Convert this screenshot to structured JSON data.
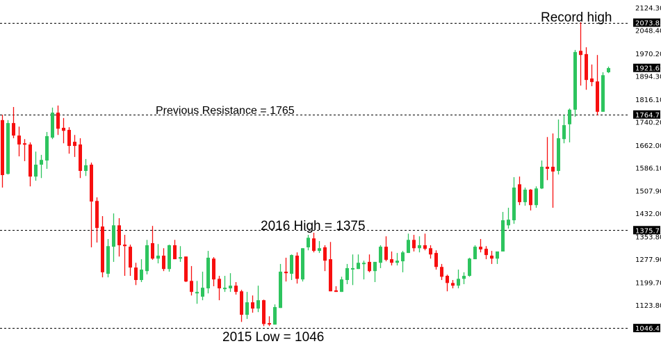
{
  "chart_data": {
    "type": "candlestick",
    "title": "",
    "xlabel": "",
    "ylabel": "",
    "ylim": [
      986,
      2150
    ],
    "grid": false,
    "colors": {
      "up": "#2dc45e",
      "down": "#f70f0f",
      "level_line": "#000000",
      "highlight_bg": "#000000"
    },
    "y_ticks": [
      "2124.30",
      "2048.40",
      "1970.20",
      "1894.30",
      "1816.10",
      "1740.20",
      "1662.00",
      "1586.10",
      "1507.90",
      "1432.00",
      "1353.80",
      "1277.90",
      "1199.70",
      "1123.80"
    ],
    "levels": [
      {
        "value": 2073.83,
        "label": "2073.83",
        "annotation": "Record high"
      },
      {
        "value": 1764.77,
        "label": "1764.77",
        "annotation": "Previous Resistance = 1765"
      },
      {
        "value": 1375.73,
        "label": "1375.73",
        "annotation": "2016 High = 1375"
      },
      {
        "value": 1046.41,
        "label": "1046.41",
        "annotation": "2015 Low = 1046"
      }
    ],
    "current_price": {
      "value": 1921.62,
      "label": "1921.62"
    },
    "candles_ohlc": [
      [
        1746,
        1764,
        1519,
        1561
      ],
      [
        1565,
        1746,
        1563,
        1736
      ],
      [
        1736,
        1790,
        1685,
        1694
      ],
      [
        1694,
        1724,
        1624,
        1664
      ],
      [
        1668,
        1682,
        1608,
        1664
      ],
      [
        1664,
        1671,
        1523,
        1556
      ],
      [
        1556,
        1640,
        1542,
        1596
      ],
      [
        1596,
        1629,
        1551,
        1612
      ],
      [
        1610,
        1706,
        1582,
        1692
      ],
      [
        1687,
        1788,
        1682,
        1771
      ],
      [
        1771,
        1795,
        1696,
        1717
      ],
      [
        1720,
        1753,
        1668,
        1710
      ],
      [
        1713,
        1722,
        1633,
        1659
      ],
      [
        1673,
        1696,
        1622,
        1659
      ],
      [
        1664,
        1685,
        1551,
        1575
      ],
      [
        1575,
        1615,
        1558,
        1594
      ],
      [
        1596,
        1603,
        1318,
        1472
      ],
      [
        1474,
        1486,
        1334,
        1383
      ],
      [
        1388,
        1423,
        1217,
        1234
      ],
      [
        1229,
        1346,
        1217,
        1322
      ],
      [
        1320,
        1432,
        1269,
        1392
      ],
      [
        1392,
        1416,
        1287,
        1325
      ],
      [
        1327,
        1360,
        1222,
        1322
      ],
      [
        1320,
        1327,
        1222,
        1250
      ],
      [
        1250,
        1266,
        1191,
        1208
      ],
      [
        1208,
        1278,
        1201,
        1243
      ],
      [
        1238,
        1343,
        1227,
        1325
      ],
      [
        1332,
        1390,
        1276,
        1280
      ],
      [
        1280,
        1329,
        1264,
        1290
      ],
      [
        1290,
        1315,
        1238,
        1245
      ],
      [
        1245,
        1327,
        1236,
        1325
      ],
      [
        1325,
        1343,
        1278,
        1278
      ],
      [
        1280,
        1322,
        1269,
        1285
      ],
      [
        1287,
        1287,
        1201,
        1203
      ],
      [
        1205,
        1255,
        1156,
        1168
      ],
      [
        1163,
        1205,
        1128,
        1168
      ],
      [
        1152,
        1236,
        1140,
        1182
      ],
      [
        1180,
        1306,
        1163,
        1283
      ],
      [
        1280,
        1285,
        1187,
        1210
      ],
      [
        1212,
        1222,
        1140,
        1180
      ],
      [
        1180,
        1222,
        1168,
        1182
      ],
      [
        1180,
        1231,
        1168,
        1189
      ],
      [
        1189,
        1201,
        1159,
        1168
      ],
      [
        1170,
        1175,
        1067,
        1091
      ],
      [
        1091,
        1168,
        1077,
        1133
      ],
      [
        1133,
        1156,
        1098,
        1112
      ],
      [
        1112,
        1189,
        1100,
        1140
      ],
      [
        1140,
        1142,
        1053,
        1060
      ],
      [
        1063,
        1086,
        1053,
        1060
      ],
      [
        1058,
        1126,
        1058,
        1117
      ],
      [
        1114,
        1262,
        1114,
        1236
      ],
      [
        1236,
        1283,
        1203,
        1231
      ],
      [
        1229,
        1294,
        1208,
        1292
      ],
      [
        1290,
        1301,
        1196,
        1212
      ],
      [
        1210,
        1315,
        1203,
        1315
      ],
      [
        1318,
        1360,
        1308,
        1350
      ],
      [
        1348,
        1367,
        1301,
        1306
      ],
      [
        1306,
        1339,
        1299,
        1315
      ],
      [
        1318,
        1325,
        1238,
        1273
      ],
      [
        1278,
        1336,
        1170,
        1170
      ],
      [
        1173,
        1187,
        1168,
        1168
      ],
      [
        1168,
        1219,
        1168,
        1210
      ],
      [
        1208,
        1262,
        1194,
        1248
      ],
      [
        1245,
        1294,
        1191,
        1248
      ],
      [
        1245,
        1294,
        1245,
        1266
      ],
      [
        1264,
        1273,
        1210,
        1266
      ],
      [
        1269,
        1294,
        1234,
        1238
      ],
      [
        1238,
        1269,
        1201,
        1269
      ],
      [
        1266,
        1325,
        1248,
        1320
      ],
      [
        1320,
        1355,
        1271,
        1276
      ],
      [
        1278,
        1304,
        1257,
        1266
      ],
      [
        1266,
        1299,
        1257,
        1273
      ],
      [
        1271,
        1306,
        1234,
        1301
      ],
      [
        1299,
        1364,
        1299,
        1343
      ],
      [
        1343,
        1360,
        1304,
        1315
      ],
      [
        1315,
        1355,
        1301,
        1325
      ],
      [
        1325,
        1364,
        1308,
        1313
      ],
      [
        1315,
        1325,
        1280,
        1294
      ],
      [
        1299,
        1308,
        1243,
        1252
      ],
      [
        1252,
        1262,
        1208,
        1219
      ],
      [
        1222,
        1226,
        1170,
        1198
      ],
      [
        1198,
        1208,
        1180,
        1189
      ],
      [
        1189,
        1243,
        1180,
        1212
      ],
      [
        1212,
        1234,
        1194,
        1222
      ],
      [
        1222,
        1283,
        1219,
        1280
      ],
      [
        1278,
        1325,
        1278,
        1320
      ],
      [
        1320,
        1346,
        1301,
        1311
      ],
      [
        1313,
        1322,
        1278,
        1292
      ],
      [
        1290,
        1306,
        1262,
        1280
      ],
      [
        1280,
        1304,
        1262,
        1304
      ],
      [
        1304,
        1437,
        1304,
        1409
      ],
      [
        1392,
        1451,
        1381,
        1411
      ],
      [
        1409,
        1554,
        1397,
        1519
      ],
      [
        1530,
        1556,
        1460,
        1470
      ],
      [
        1470,
        1519,
        1458,
        1512
      ],
      [
        1512,
        1514,
        1442,
        1460
      ],
      [
        1460,
        1523,
        1451,
        1516
      ],
      [
        1516,
        1610,
        1514,
        1589
      ],
      [
        1589,
        1689,
        1544,
        1582
      ],
      [
        1589,
        1701,
        1451,
        1573
      ],
      [
        1575,
        1748,
        1563,
        1685
      ],
      [
        1682,
        1764,
        1668,
        1729
      ],
      [
        1732,
        1785,
        1671,
        1781
      ],
      [
        1781,
        1982,
        1757,
        1975
      ],
      [
        1979,
        2075,
        1862,
        1965
      ],
      [
        1968,
        1991,
        1848,
        1881
      ],
      [
        1886,
        1933,
        1860,
        1874
      ],
      [
        1876,
        1965,
        1762,
        1774
      ],
      [
        1774,
        1907,
        1774,
        1897
      ],
      [
        1907,
        1926,
        1904,
        1921
      ]
    ]
  }
}
